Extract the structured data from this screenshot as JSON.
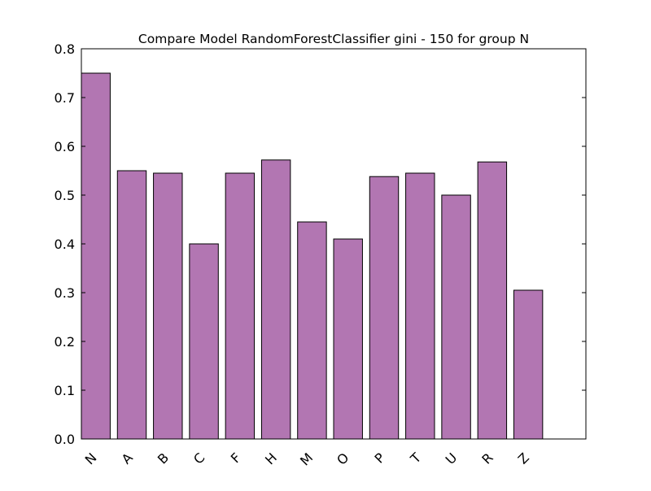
{
  "chart_data": {
    "type": "bar",
    "title": "Compare Model RandomForestClassifier gini - 150 for group N",
    "xlabel": "",
    "ylabel": "",
    "categories": [
      "N",
      "A",
      "B",
      "C",
      "F",
      "H",
      "M",
      "O",
      "P",
      "T",
      "U",
      "R",
      "Z"
    ],
    "values": [
      0.75,
      0.55,
      0.545,
      0.4,
      0.545,
      0.572,
      0.445,
      0.41,
      0.538,
      0.545,
      0.5,
      0.568,
      0.305
    ],
    "ylim": [
      0.0,
      0.8
    ],
    "yticks": [
      "0.0",
      "0.1",
      "0.2",
      "0.3",
      "0.4",
      "0.5",
      "0.6",
      "0.7",
      "0.8"
    ],
    "xlim": [
      0,
      14
    ],
    "bar_color": "#b276b2",
    "edge_color": "#000000",
    "grid": false,
    "legend": "none"
  }
}
